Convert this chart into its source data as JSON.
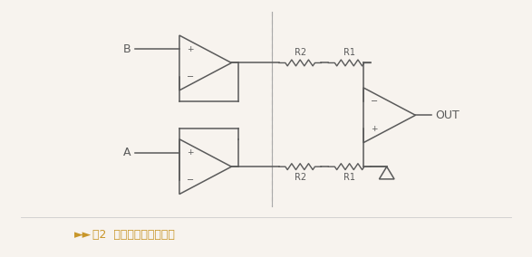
{
  "bg_color": "#f7f3ee",
  "line_color": "#5a5a5a",
  "caption_color": "#c8962a",
  "caption_text": "图2  加缓冲的差动放大器",
  "caption_prefix": "►►",
  "dashed_line_color": "#aaaaaa",
  "label_B": "B",
  "label_A": "A",
  "label_OUT": "OUT",
  "label_R2_top": "R2",
  "label_R1_top": "R1",
  "label_R2_bot": "R2",
  "label_R1_bot": "R1"
}
